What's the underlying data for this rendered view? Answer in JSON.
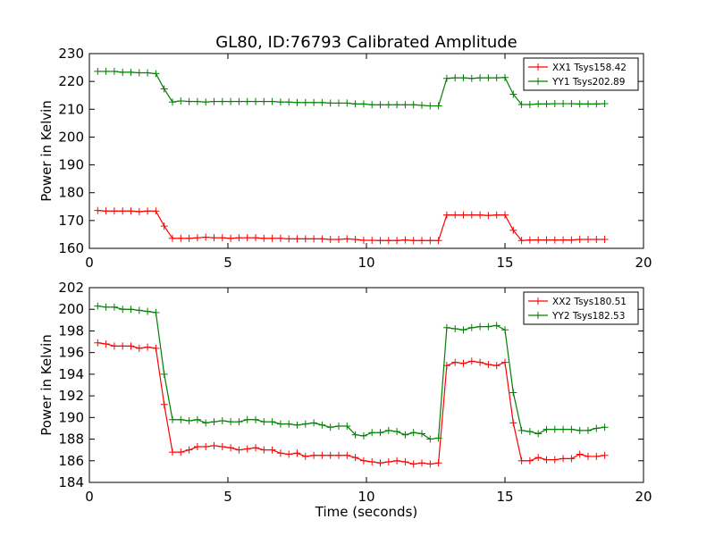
{
  "figure_title": "GL80, ID:76793 Calibrated Amplitude",
  "colors": {
    "series1": "#ff0000",
    "series2": "#008000",
    "axes": "#000000"
  },
  "chart_data": [
    {
      "type": "line",
      "title": "GL80, ID:76793 Calibrated Amplitude",
      "xlabel": "",
      "ylabel": "Power in Kelvin",
      "xlim": [
        0,
        20
      ],
      "ylim": [
        160,
        230
      ],
      "xticks": [
        0,
        5,
        10,
        15,
        20
      ],
      "yticks": [
        160,
        170,
        180,
        190,
        200,
        210,
        220,
        230
      ],
      "legend_position": "top-right",
      "grid": false,
      "x": [
        0.3,
        0.6,
        0.9,
        1.2,
        1.5,
        1.8,
        2.1,
        2.4,
        2.7,
        3.0,
        3.3,
        3.6,
        3.9,
        4.2,
        4.5,
        4.8,
        5.1,
        5.4,
        5.7,
        6.0,
        6.3,
        6.6,
        6.9,
        7.2,
        7.5,
        7.8,
        8.1,
        8.4,
        8.7,
        9.0,
        9.3,
        9.6,
        9.9,
        10.2,
        10.5,
        10.8,
        11.1,
        11.4,
        11.7,
        12.0,
        12.3,
        12.6,
        12.9,
        13.2,
        13.5,
        13.8,
        14.1,
        14.4,
        14.7,
        15.0,
        15.3,
        15.6,
        15.9,
        16.2,
        16.5,
        16.8,
        17.1,
        17.4,
        17.7,
        18.0,
        18.3,
        18.6
      ],
      "series": [
        {
          "name": "XX1 Tsys158.42",
          "color": "#ff0000",
          "values": [
            173.6,
            173.4,
            173.4,
            173.4,
            173.4,
            173.2,
            173.4,
            173.4,
            168.0,
            163.6,
            163.6,
            163.6,
            163.8,
            164.0,
            163.8,
            163.8,
            163.6,
            163.8,
            163.8,
            163.8,
            163.6,
            163.6,
            163.6,
            163.4,
            163.4,
            163.4,
            163.4,
            163.4,
            163.2,
            163.2,
            163.4,
            163.2,
            162.9,
            162.9,
            162.8,
            162.8,
            162.8,
            163.0,
            162.8,
            162.8,
            162.8,
            162.8,
            172.0,
            172.0,
            172.0,
            172.0,
            172.0,
            171.8,
            172.0,
            172.0,
            166.5,
            162.8,
            163.0,
            163.0,
            163.0,
            163.0,
            163.0,
            163.0,
            163.2,
            163.2,
            163.2,
            163.2
          ]
        },
        {
          "name": "YY1 Tsys202.89",
          "color": "#008000",
          "values": [
            223.6,
            223.6,
            223.6,
            223.3,
            223.3,
            223.1,
            223.1,
            222.8,
            217.3,
            212.6,
            213.0,
            212.8,
            212.8,
            212.6,
            212.8,
            212.8,
            212.8,
            212.8,
            212.8,
            212.8,
            212.8,
            212.8,
            212.6,
            212.6,
            212.4,
            212.4,
            212.4,
            212.4,
            212.2,
            212.2,
            212.2,
            211.9,
            211.9,
            211.6,
            211.6,
            211.6,
            211.6,
            211.6,
            211.6,
            211.4,
            211.2,
            211.2,
            221.1,
            221.3,
            221.3,
            221.1,
            221.3,
            221.3,
            221.3,
            221.4,
            215.4,
            211.7,
            211.7,
            211.9,
            211.9,
            212.0,
            212.0,
            212.0,
            211.9,
            211.9,
            211.9,
            212.0
          ]
        }
      ]
    },
    {
      "type": "line",
      "title": "",
      "xlabel": "Time (seconds)",
      "ylabel": "Power in Kelvin",
      "xlim": [
        0,
        20
      ],
      "ylim": [
        184,
        202
      ],
      "xticks": [
        0,
        5,
        10,
        15,
        20
      ],
      "yticks": [
        184,
        186,
        188,
        190,
        192,
        194,
        196,
        198,
        200,
        202
      ],
      "legend_position": "top-right",
      "grid": false,
      "x": [
        0.3,
        0.6,
        0.9,
        1.2,
        1.5,
        1.8,
        2.1,
        2.4,
        2.7,
        3.0,
        3.3,
        3.6,
        3.9,
        4.2,
        4.5,
        4.8,
        5.1,
        5.4,
        5.7,
        6.0,
        6.3,
        6.6,
        6.9,
        7.2,
        7.5,
        7.8,
        8.1,
        8.4,
        8.7,
        9.0,
        9.3,
        9.6,
        9.9,
        10.2,
        10.5,
        10.8,
        11.1,
        11.4,
        11.7,
        12.0,
        12.3,
        12.6,
        12.9,
        13.2,
        13.5,
        13.8,
        14.1,
        14.4,
        14.7,
        15.0,
        15.3,
        15.6,
        15.9,
        16.2,
        16.5,
        16.8,
        17.1,
        17.4,
        17.7,
        18.0,
        18.3,
        18.6
      ],
      "series": [
        {
          "name": "XX2 Tsys180.51",
          "color": "#ff0000",
          "values": [
            196.9,
            196.8,
            196.6,
            196.6,
            196.6,
            196.4,
            196.5,
            196.4,
            191.2,
            186.8,
            186.8,
            187.0,
            187.3,
            187.3,
            187.4,
            187.3,
            187.2,
            187.0,
            187.1,
            187.2,
            187.0,
            187.0,
            186.7,
            186.6,
            186.7,
            186.4,
            186.5,
            186.5,
            186.5,
            186.5,
            186.5,
            186.3,
            186.0,
            185.9,
            185.8,
            185.9,
            186.0,
            185.9,
            185.7,
            185.8,
            185.7,
            185.8,
            194.8,
            195.1,
            195.0,
            195.2,
            195.1,
            194.9,
            194.8,
            195.1,
            189.5,
            186.0,
            186.0,
            186.3,
            186.1,
            186.1,
            186.2,
            186.2,
            186.6,
            186.4,
            186.4,
            186.5
          ]
        },
        {
          "name": "YY2 Tsys182.53",
          "color": "#008000",
          "values": [
            200.3,
            200.2,
            200.2,
            200.0,
            200.0,
            199.9,
            199.8,
            199.7,
            194.0,
            189.8,
            189.8,
            189.7,
            189.8,
            189.5,
            189.6,
            189.7,
            189.6,
            189.6,
            189.8,
            189.8,
            189.6,
            189.6,
            189.4,
            189.4,
            189.3,
            189.4,
            189.5,
            189.3,
            189.1,
            189.2,
            189.2,
            188.4,
            188.3,
            188.6,
            188.6,
            188.8,
            188.7,
            188.4,
            188.6,
            188.5,
            188.0,
            188.1,
            198.3,
            198.2,
            198.1,
            198.3,
            198.4,
            198.4,
            198.5,
            198.1,
            192.3,
            188.8,
            188.7,
            188.5,
            188.9,
            188.9,
            188.9,
            188.9,
            188.8,
            188.8,
            189.0,
            189.1
          ]
        }
      ]
    }
  ]
}
